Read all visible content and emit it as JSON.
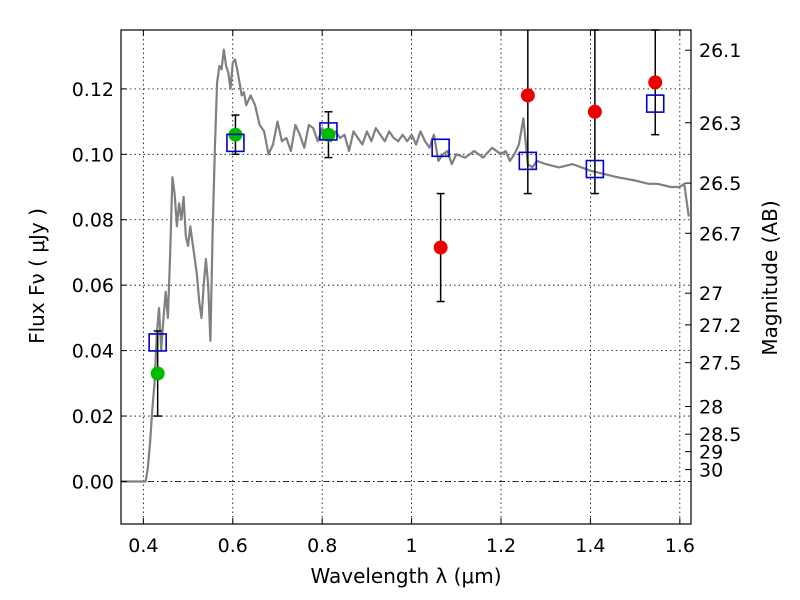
{
  "chart_data": {
    "type": "scatter",
    "title": "",
    "xlabel": "Wavelength  λ (μm)",
    "ylabel_left": "Flux  Fν  ( μJy )",
    "ylabel_right": "Magnitude (AB)",
    "xlim": [
      0.35,
      1.625
    ],
    "ylim": [
      -0.013,
      0.138
    ],
    "grid": true,
    "legend": "none",
    "x_ticks": [
      0.4,
      0.6,
      0.8,
      1.0,
      1.2,
      1.4,
      1.6
    ],
    "x_tick_labels": [
      "0.4",
      "0.6",
      "0.8",
      "1",
      "1.2",
      "1.4",
      "1.6"
    ],
    "y_ticks": [
      0.0,
      0.02,
      0.04,
      0.06,
      0.08,
      0.1,
      0.12
    ],
    "y_tick_labels": [
      "0.00",
      "0.02",
      "0.04",
      "0.06",
      "0.08",
      "0.10",
      "0.12"
    ],
    "mag_ticks": [
      26.1,
      26.3,
      26.5,
      26.7,
      27,
      27.2,
      27.5,
      28,
      28.5,
      29,
      30
    ],
    "mag_tick_labels": [
      "26.1",
      "26.3",
      "26.5",
      "26.7",
      "27",
      "27.2",
      "27.5",
      "28",
      "28.5",
      "29",
      "30"
    ],
    "colors": {
      "model": "#808080",
      "optical_points": "#00bb00",
      "nir_points": "#ee0000",
      "model_bands": "#0000cc",
      "errorbar": "#000000"
    },
    "series": [
      {
        "kind": "line",
        "role": "model-spectrum",
        "x": [
          0.35,
          0.39,
          0.405,
          0.41,
          0.415,
          0.42,
          0.425,
          0.43,
          0.435,
          0.44,
          0.445,
          0.45,
          0.455,
          0.46,
          0.465,
          0.47,
          0.475,
          0.48,
          0.485,
          0.49,
          0.495,
          0.5,
          0.505,
          0.51,
          0.515,
          0.52,
          0.525,
          0.53,
          0.535,
          0.54,
          0.545,
          0.55,
          0.555,
          0.56,
          0.565,
          0.57,
          0.575,
          0.58,
          0.585,
          0.59,
          0.595,
          0.6,
          0.605,
          0.61,
          0.615,
          0.62,
          0.625,
          0.63,
          0.64,
          0.65,
          0.66,
          0.67,
          0.68,
          0.69,
          0.7,
          0.71,
          0.72,
          0.73,
          0.74,
          0.75,
          0.76,
          0.77,
          0.78,
          0.79,
          0.8,
          0.81,
          0.82,
          0.83,
          0.84,
          0.85,
          0.86,
          0.87,
          0.88,
          0.89,
          0.9,
          0.91,
          0.92,
          0.93,
          0.94,
          0.95,
          0.96,
          0.97,
          0.98,
          0.99,
          1.0,
          1.01,
          1.02,
          1.03,
          1.04,
          1.05,
          1.06,
          1.07,
          1.08,
          1.09,
          1.1,
          1.12,
          1.14,
          1.16,
          1.18,
          1.2,
          1.21,
          1.22,
          1.23,
          1.24,
          1.25,
          1.26,
          1.27,
          1.28,
          1.3,
          1.33,
          1.36,
          1.4,
          1.43,
          1.46,
          1.5,
          1.53,
          1.55,
          1.58,
          1.6,
          1.61,
          1.615,
          1.62
        ],
        "y": [
          0.0,
          0.0,
          0.0,
          0.004,
          0.012,
          0.022,
          0.03,
          0.045,
          0.053,
          0.04,
          0.05,
          0.058,
          0.05,
          0.07,
          0.093,
          0.088,
          0.078,
          0.085,
          0.08,
          0.087,
          0.075,
          0.072,
          0.078,
          0.073,
          0.068,
          0.063,
          0.055,
          0.05,
          0.06,
          0.068,
          0.06,
          0.043,
          0.076,
          0.102,
          0.122,
          0.127,
          0.126,
          0.132,
          0.127,
          0.125,
          0.12,
          0.128,
          0.129,
          0.126,
          0.122,
          0.118,
          0.119,
          0.115,
          0.118,
          0.115,
          0.109,
          0.107,
          0.1,
          0.103,
          0.11,
          0.104,
          0.105,
          0.101,
          0.109,
          0.106,
          0.102,
          0.109,
          0.108,
          0.104,
          0.108,
          0.106,
          0.104,
          0.107,
          0.105,
          0.106,
          0.101,
          0.107,
          0.105,
          0.103,
          0.107,
          0.104,
          0.108,
          0.106,
          0.104,
          0.107,
          0.105,
          0.104,
          0.106,
          0.104,
          0.106,
          0.103,
          0.107,
          0.104,
          0.102,
          0.106,
          0.098,
          0.1,
          0.101,
          0.097,
          0.1,
          0.099,
          0.101,
          0.099,
          0.102,
          0.1,
          0.101,
          0.098,
          0.1,
          0.103,
          0.111,
          0.097,
          0.096,
          0.098,
          0.097,
          0.096,
          0.097,
          0.095,
          0.094,
          0.093,
          0.092,
          0.091,
          0.091,
          0.09,
          0.09,
          0.091,
          0.086,
          0.081
        ]
      },
      {
        "kind": "scatter",
        "role": "optical-detections",
        "x": [
          0.432,
          0.606,
          0.814
        ],
        "y": [
          0.033,
          0.106,
          0.106
        ],
        "err": [
          0.013,
          0.006,
          0.007
        ]
      },
      {
        "kind": "scatter",
        "role": "nir-detections",
        "x": [
          1.065,
          1.26,
          1.41,
          1.545
        ],
        "y": [
          0.0715,
          0.118,
          0.113,
          0.122
        ],
        "err": [
          0.0165,
          0.03,
          0.025,
          0.016
        ]
      },
      {
        "kind": "scatter",
        "role": "model-band-fluxes",
        "x": [
          0.432,
          0.606,
          0.814,
          1.065,
          1.26,
          1.41,
          1.545
        ],
        "y": [
          0.0425,
          0.1035,
          0.107,
          0.102,
          0.098,
          0.0955,
          0.1155
        ],
        "marker": "square-open"
      }
    ]
  }
}
